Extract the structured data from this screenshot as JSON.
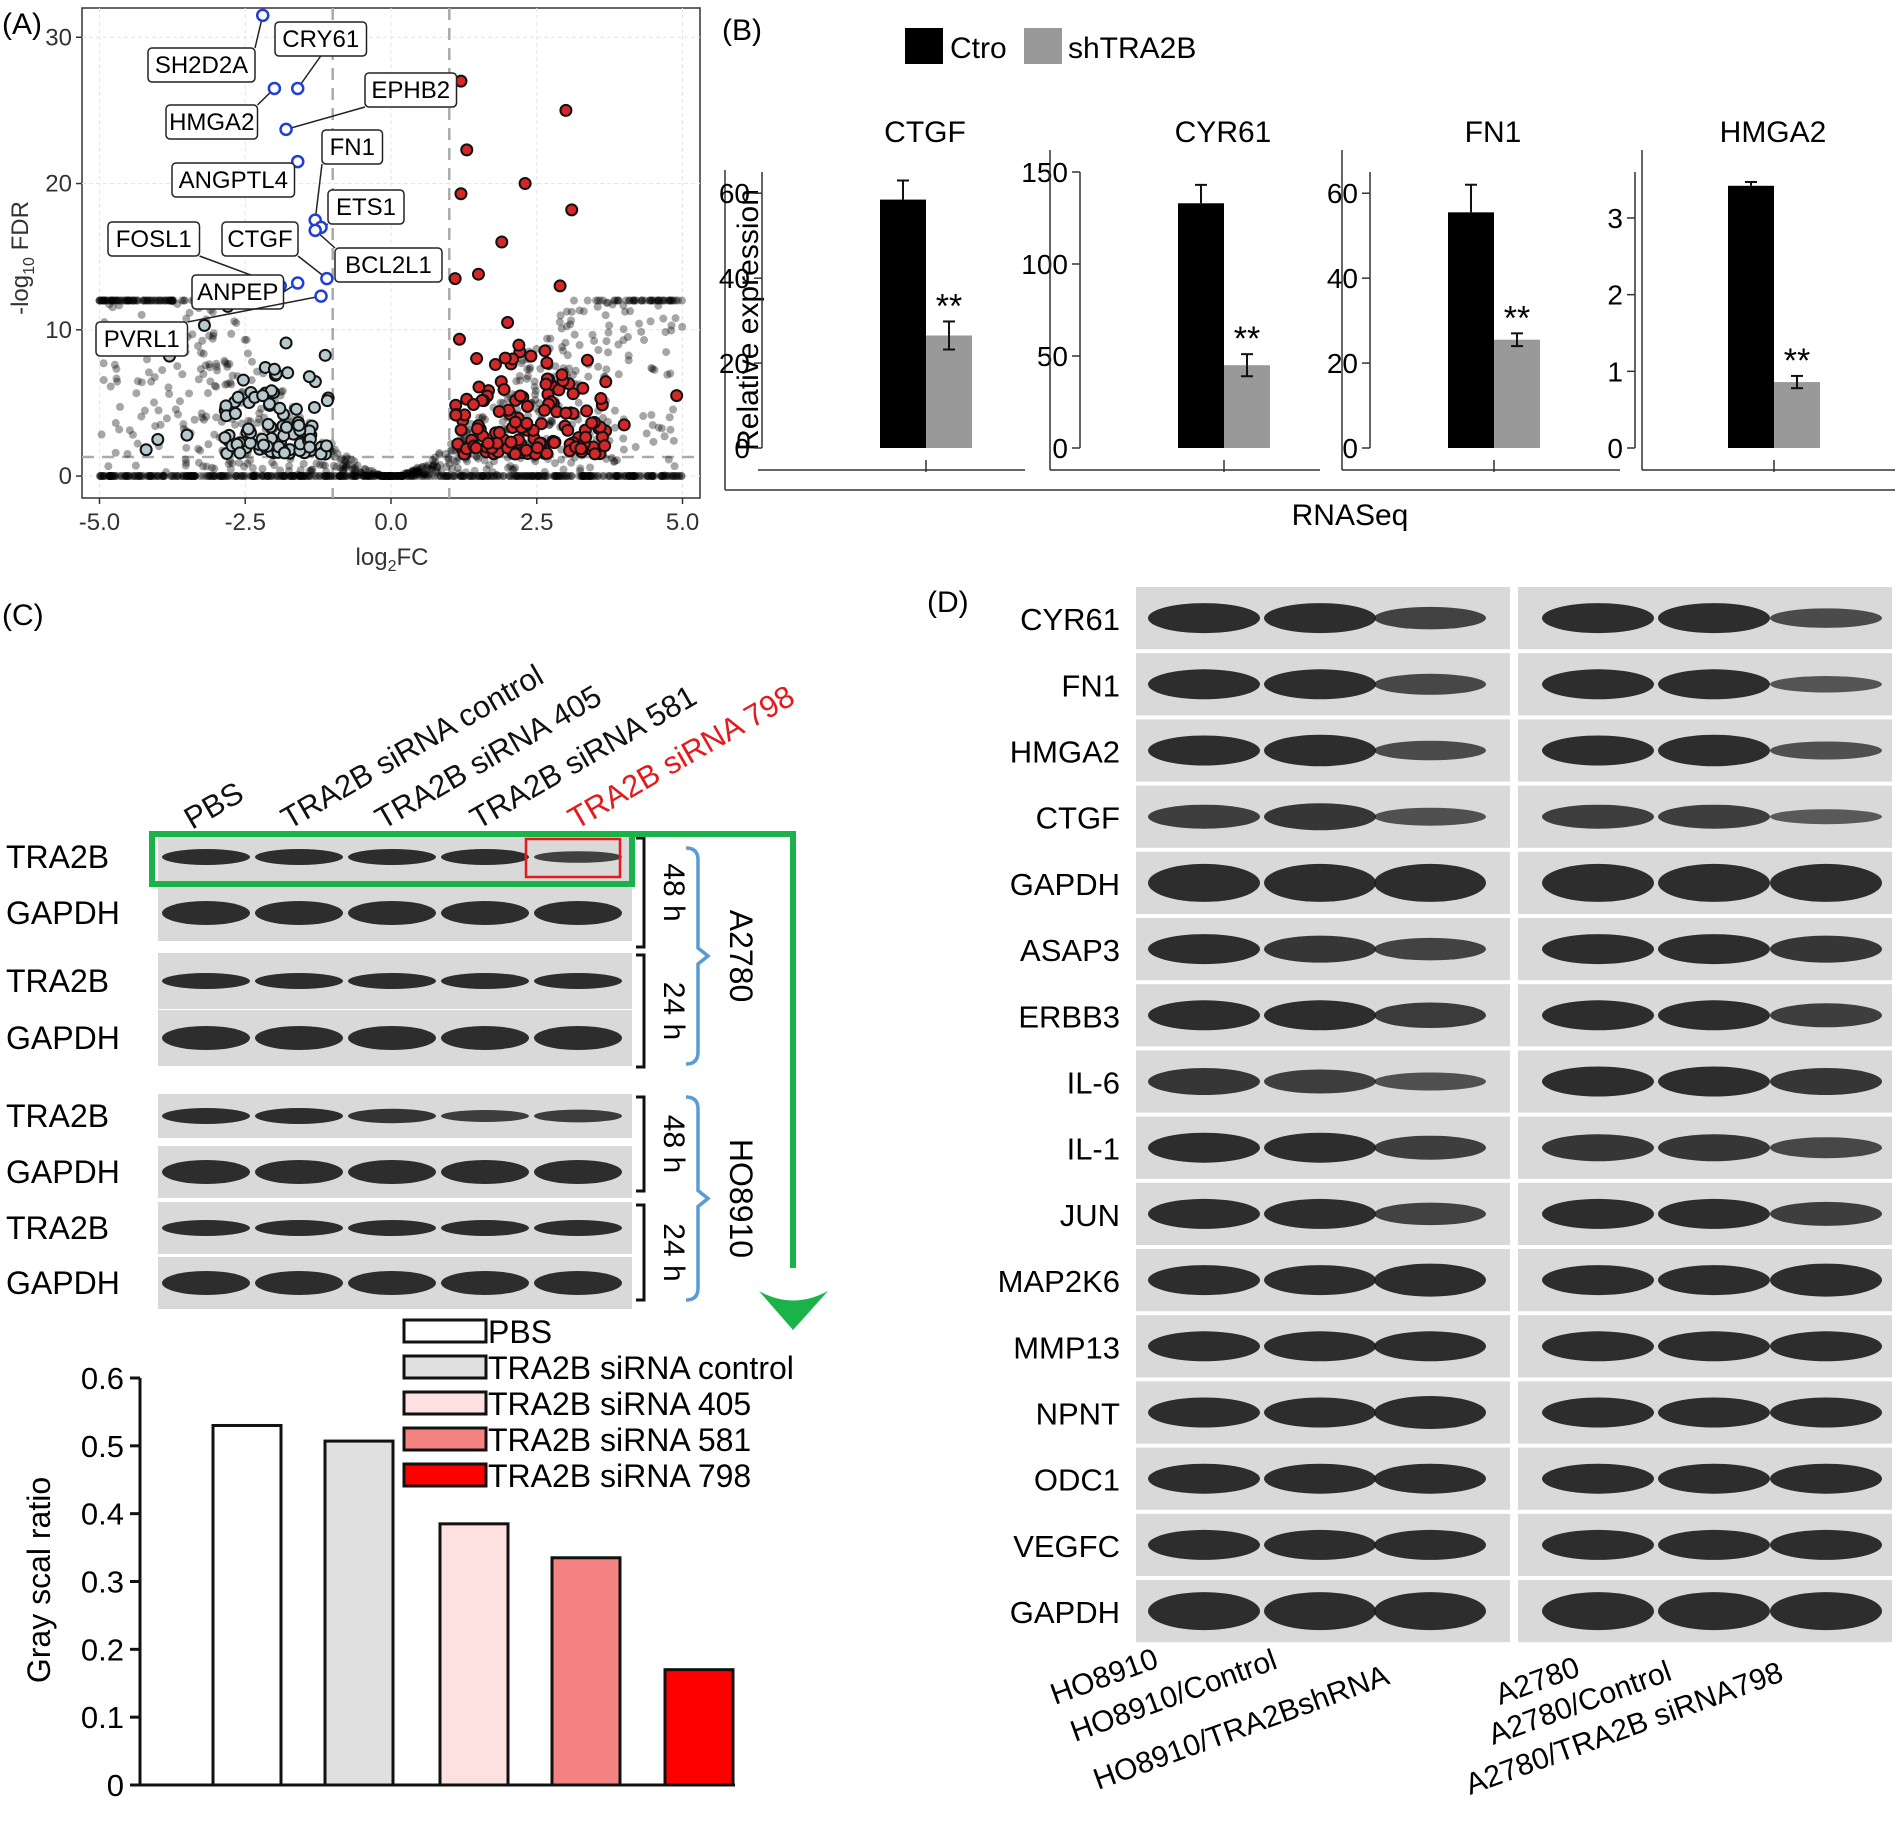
{
  "figure": {
    "panel_labels": [
      "(A)",
      "(B)",
      "(C)",
      "(D)"
    ],
    "colors": {
      "up": "#d62728",
      "down": "#b7c9cc",
      "highlight": "#1f3fd6",
      "ctrl_bar": "#000000",
      "sh_bar": "#999999",
      "green_arrow": "#19b34a",
      "red_box": "#e41a1c",
      "bracket_blue": "#5b9bd5",
      "blot_bg": "#d9d9d9",
      "band": "#1a1a1a"
    }
  },
  "chart_data": [
    {
      "panel": "A",
      "type": "scatter",
      "title": "",
      "xlabel": "log2FC",
      "ylabel": "-log10 FDR",
      "xlim": [
        -5.3,
        5.3
      ],
      "ylim": [
        -1.5,
        32
      ],
      "x_ticks": [
        -5.0,
        -2.5,
        0.0,
        2.5,
        5.0
      ],
      "x_tick_labels": [
        "-5.0",
        "-2.5",
        "0.0",
        "2.5",
        "5.0"
      ],
      "y_ticks": [
        0,
        10,
        20,
        30
      ],
      "y_tick_labels": [
        "0",
        "10",
        "20",
        "30"
      ],
      "thresholds": {
        "log2fc": [
          -1,
          1
        ],
        "fdr": 1.3
      },
      "labeled_genes": [
        {
          "gene": "SH2D2A",
          "x": -2.2,
          "y": 31.5
        },
        {
          "gene": "CRY61",
          "x": -1.6,
          "y": 26.5
        },
        {
          "gene": "HMGA2",
          "x": -2.0,
          "y": 26.5
        },
        {
          "gene": "EPHB2",
          "x": -1.8,
          "y": 23.7
        },
        {
          "gene": "FN1",
          "x": -1.3,
          "y": 17.5
        },
        {
          "gene": "ANGPTL4",
          "x": -1.6,
          "y": 21.5
        },
        {
          "gene": "ETS1",
          "x": -1.2,
          "y": 17.0
        },
        {
          "gene": "FOSL1",
          "x": -1.9,
          "y": 13.0
        },
        {
          "gene": "CTGF",
          "x": -1.1,
          "y": 13.5
        },
        {
          "gene": "BCL2L1",
          "x": -1.3,
          "y": 16.8
        },
        {
          "gene": "ANPEP",
          "x": -1.6,
          "y": 13.2
        },
        {
          "gene": "PVRL1",
          "x": -1.2,
          "y": 12.3
        }
      ],
      "up_points": [
        {
          "x": 1.2,
          "y": 27
        },
        {
          "x": 3.0,
          "y": 25
        },
        {
          "x": 1.3,
          "y": 22.3
        },
        {
          "x": 2.3,
          "y": 20
        },
        {
          "x": 3.1,
          "y": 18.2
        },
        {
          "x": 1.2,
          "y": 19.3
        },
        {
          "x": 1.9,
          "y": 16
        },
        {
          "x": 1.5,
          "y": 13.8
        },
        {
          "x": 2.9,
          "y": 13
        },
        {
          "x": 1.1,
          "y": 13.5
        },
        {
          "x": 4.9,
          "y": 5.5
        },
        {
          "x": 3.6,
          "y": 5.3
        },
        {
          "x": 4.0,
          "y": 3.5
        },
        {
          "x": 3.0,
          "y": 4.3
        },
        {
          "x": 2.4,
          "y": 8.2
        },
        {
          "x": 2.0,
          "y": 10.5
        }
      ],
      "down_points": [
        {
          "x": -3.8,
          "y": 8.2
        },
        {
          "x": -3.2,
          "y": 10.3
        },
        {
          "x": -2.8,
          "y": 11.6
        },
        {
          "x": -3.5,
          "y": 2.8
        },
        {
          "x": -4.2,
          "y": 1.8
        },
        {
          "x": -4.0,
          "y": 2.5
        },
        {
          "x": -2.2,
          "y": 5.5
        },
        {
          "x": -2.0,
          "y": 7.3
        },
        {
          "x": -1.8,
          "y": 9.1
        },
        {
          "x": -1.4,
          "y": 6.8
        },
        {
          "x": -1.6,
          "y": 21.5
        }
      ]
    },
    {
      "panel": "B",
      "type": "bar",
      "title": "",
      "ylabel": "Relative expression",
      "xlabel": "RNASeq",
      "legend": [
        "Ctro",
        "shTRA2B"
      ],
      "legend_position": "top",
      "subplots": [
        {
          "gene": "CTGF",
          "ylim": [
            0,
            65
          ],
          "y_ticks": [
            0,
            20,
            40,
            60
          ],
          "series": [
            {
              "name": "Ctro",
              "value": 58.5,
              "err": 4.5
            },
            {
              "name": "shTRA2B",
              "value": 26.5,
              "err": 3.3
            }
          ],
          "sig": "**"
        },
        {
          "gene": "CYR61",
          "ylim": [
            0,
            150
          ],
          "y_ticks": [
            0,
            50,
            100,
            150
          ],
          "series": [
            {
              "name": "Ctro",
              "value": 133,
              "err": 10
            },
            {
              "name": "shTRA2B",
              "value": 45,
              "err": 6
            }
          ],
          "sig": "**"
        },
        {
          "gene": "FN1",
          "ylim": [
            0,
            65
          ],
          "y_ticks": [
            0,
            20,
            40,
            60
          ],
          "series": [
            {
              "name": "Ctro",
              "value": 55.5,
              "err": 6.5
            },
            {
              "name": "shTRA2B",
              "value": 25.5,
              "err": 1.5
            }
          ],
          "sig": "**"
        },
        {
          "gene": "HMGA2",
          "ylim": [
            0,
            3.6
          ],
          "y_ticks": [
            0,
            1,
            2,
            3
          ],
          "series": [
            {
              "name": "Ctro",
              "value": 3.42,
              "err": 0.05
            },
            {
              "name": "shTRA2B",
              "value": 0.86,
              "err": 0.08
            }
          ],
          "sig": "**"
        }
      ]
    },
    {
      "panel": "C",
      "type": "bar",
      "title": "",
      "xlabel": "",
      "ylabel": "Gray scal ratio",
      "ylim": [
        0,
        0.6
      ],
      "y_ticks": [
        0,
        0.1,
        0.2,
        0.3,
        0.4,
        0.5,
        0.6
      ],
      "y_tick_labels": [
        "0",
        "0.1",
        "0.2",
        "0.3",
        "0.4",
        "0.5",
        "0.6"
      ],
      "categories": [
        "PBS",
        "TRA2B siRNA control",
        "TRA2B siRNA 405",
        "TRA2B siRNA 581",
        "TRA2B siRNA 798"
      ],
      "values": [
        0.53,
        0.507,
        0.385,
        0.335,
        0.17
      ],
      "colors": [
        "#ffffff",
        "#e0e0e0",
        "#fde0e0",
        "#f48282",
        "#ff0000"
      ],
      "legend_position": "top-right"
    }
  ],
  "panel_c": {
    "lane_labels": [
      "PBS",
      "TRA2B siRNA control",
      "TRA2B siRNA 405",
      "TRA2B siRNA 581",
      "TRA2B siRNA 798"
    ],
    "highlight_lane_label": "TRA2B siRNA 798",
    "rows": [
      "TRA2B",
      "GAPDH",
      "TRA2B",
      "GAPDH",
      "TRA2B",
      "GAPDH",
      "TRA2B",
      "GAPDH"
    ],
    "time_labels": [
      "48 h",
      "24 h",
      "48 h",
      "24 h"
    ],
    "cell_lines": [
      "A2780",
      "HO8910"
    ]
  },
  "panel_d": {
    "rows": [
      "CYR61",
      "FN1",
      "HMGA2",
      "CTGF",
      "GAPDH",
      "ASAP3",
      "ERBB3",
      "IL-6",
      "IL-1",
      "JUN",
      "MAP2K6",
      "MMP13",
      "NPNT",
      "ODC1",
      "VEGFC",
      "GAPDH"
    ],
    "lanes": [
      "HO8910",
      "HO8910/Control",
      "HO8910/TRA2BshRNA",
      "A2780",
      "A2780/Control",
      "A2780/TRA2B siRNA798"
    ]
  }
}
